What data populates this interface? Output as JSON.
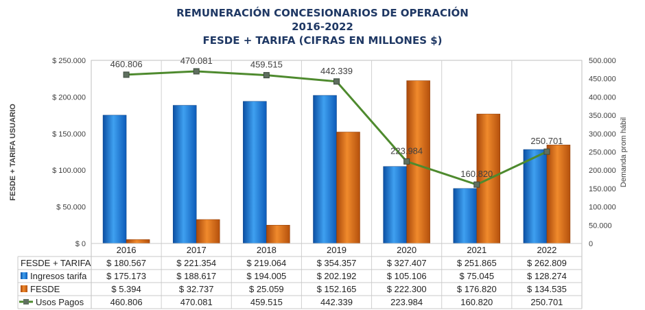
{
  "chart_data": {
    "type": "bar+line",
    "title_lines": [
      "REMUNERACIÓN CONCESIONARIOS DE OPERACIÓN",
      "2016-2022",
      "FESDE + TARIFA (CIFRAS EN MILLONES $)"
    ],
    "categories": [
      "2016",
      "2017",
      "2018",
      "2019",
      "2020",
      "2021",
      "2022"
    ],
    "ylabel_left": "FESDE + TARIFA USUARIO",
    "ylabel_right": "Demanda prom hábil",
    "ylim_left": [
      0,
      250000
    ],
    "ylim_right": [
      0,
      500000
    ],
    "yticks_left": [
      "$ 250.000",
      "$ 200.000",
      "$ 150.000",
      "$ 100.000",
      "$ 50.000",
      "$ 0"
    ],
    "yticks_right": [
      "500.000",
      "450.000",
      "400.000",
      "350.000",
      "300.000",
      "250.000",
      "200.000",
      "150.000",
      "100.000",
      "50.000",
      "0"
    ],
    "series": [
      {
        "name": "Ingresos tarifa",
        "axis": "left",
        "kind": "bar",
        "color": "#1f7fd8",
        "values": [
          175173,
          188617,
          194005,
          202192,
          105106,
          75045,
          128274
        ],
        "table_labels": [
          "$ 175.173",
          "$ 188.617",
          "$ 194.005",
          "$ 202.192",
          "$ 105.106",
          "$ 75.045",
          "$ 128.274"
        ]
      },
      {
        "name": "FESDE",
        "axis": "left",
        "kind": "bar",
        "color": "#e46c0a",
        "values": [
          5394,
          32737,
          25059,
          152165,
          222300,
          176820,
          134535
        ],
        "table_labels": [
          "$ 5.394",
          "$ 32.737",
          "$ 25.059",
          "$ 152.165",
          "$ 222.300",
          "$ 176.820",
          "$ 134.535"
        ]
      },
      {
        "name": "Usos Pagos",
        "axis": "right",
        "kind": "line",
        "color": "#4e8a2e",
        "values": [
          460806,
          470081,
          459515,
          442339,
          223984,
          160820,
          250701
        ],
        "data_labels": [
          "460.806",
          "470.081",
          "459.515",
          "442.339",
          "223.984",
          "160.820",
          "250.701"
        ],
        "table_labels": [
          "460.806",
          "470.081",
          "459.515",
          "442.339",
          "223.984",
          "160.820",
          "250.701"
        ]
      }
    ],
    "table": {
      "total_row_name": "FESDE + TARIFA",
      "total_row": [
        "$ 180.567",
        "$ 221.354",
        "$ 219.064",
        "$ 354.357",
        "$ 327.407",
        "$ 251.865",
        "$ 262.809"
      ]
    }
  }
}
